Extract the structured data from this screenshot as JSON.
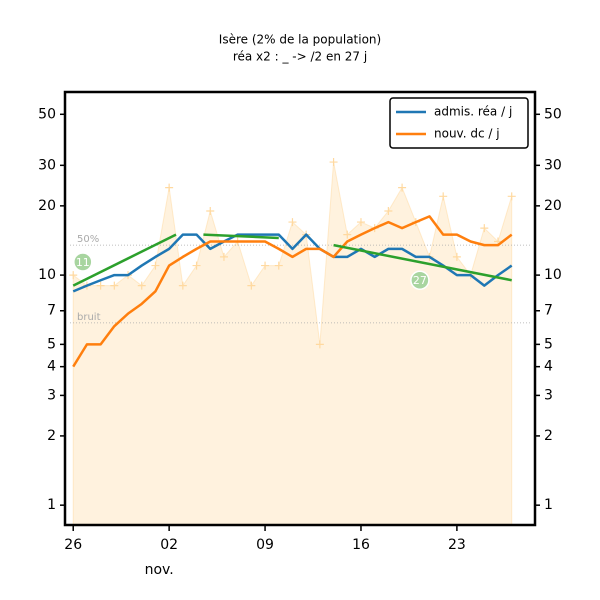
{
  "chart_data": {
    "type": "line",
    "title": "Isère (2% de la population)",
    "subtitle": "réa x2 : _ -> /2 en 27 j",
    "x": [
      0,
      1,
      2,
      3,
      4,
      5,
      6,
      7,
      8,
      9,
      10,
      11,
      12,
      13,
      14,
      15,
      16,
      17,
      18,
      19,
      20,
      21,
      22,
      23,
      24,
      25,
      26,
      27,
      28,
      29,
      30,
      31,
      32
    ],
    "xlim": [
      -0.6,
      33.7
    ],
    "xticks": [
      {
        "value": 0,
        "label": "26"
      },
      {
        "value": 7,
        "label": "02"
      },
      {
        "value": 14,
        "label": "09"
      },
      {
        "value": 21,
        "label": "16"
      },
      {
        "value": 28,
        "label": "23"
      }
    ],
    "x_month_label": "nov.",
    "ylim": [
      0.82,
      62.5
    ],
    "yticks": [
      1,
      2,
      3,
      4,
      5,
      7,
      10,
      20,
      30,
      50
    ],
    "log_y": true,
    "legend": "upper right",
    "series": [
      {
        "name": "admis. réa / j",
        "color": "#1f77b4",
        "values": [
          8.5,
          9,
          9.5,
          10,
          10,
          11,
          12,
          13,
          15,
          15,
          13,
          14,
          15,
          15,
          15,
          15,
          13,
          15,
          13,
          12,
          12,
          13,
          12,
          13,
          13,
          12,
          12,
          11,
          10,
          10,
          9,
          10,
          11
        ]
      },
      {
        "name": "nouv. dc / j",
        "color": "#ff7f0e",
        "values": [
          4,
          5,
          5,
          6,
          6.8,
          7.5,
          8.5,
          11,
          12,
          13,
          14,
          14,
          14,
          14,
          14,
          13,
          12,
          13,
          13,
          12,
          14,
          15,
          16,
          17,
          16,
          17,
          18,
          15,
          15,
          14,
          13.5,
          13.5,
          15
        ]
      }
    ],
    "daily": {
      "color": "#ffd9a0",
      "values": [
        10,
        9,
        9,
        9,
        10,
        9,
        11,
        24,
        9,
        11,
        19,
        12,
        14,
        9,
        11,
        11,
        17,
        15,
        5,
        31,
        15,
        17,
        16,
        19,
        24,
        17,
        12,
        22,
        12,
        10,
        16,
        14,
        22
      ]
    },
    "trend_color": "#2ca02c",
    "trend_lines": [
      {
        "x": [
          0,
          7.5
        ],
        "values": [
          9,
          15
        ]
      },
      {
        "x": [
          9.5,
          15
        ],
        "values": [
          15,
          14.5
        ]
      },
      {
        "x": [
          19,
          32
        ],
        "values": [
          13.5,
          9.5
        ]
      }
    ],
    "hlines": [
      {
        "value": 13.5,
        "label": "50%"
      },
      {
        "value": 6.2,
        "label": "bruit"
      }
    ],
    "annotations": [
      {
        "x": 0.7,
        "y": 11.4,
        "label": "11"
      },
      {
        "x": 25.3,
        "y": 9.5,
        "label": "27"
      }
    ]
  }
}
